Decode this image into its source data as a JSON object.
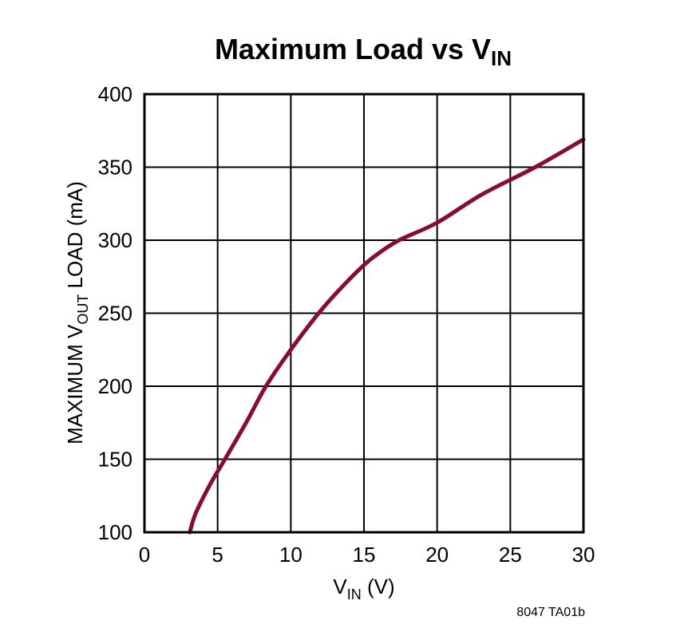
{
  "chart_data": {
    "type": "line",
    "title": "Maximum Load vs V",
    "title_subscript": "IN",
    "xlabel": "V",
    "xlabel_subscript": "IN",
    "xlabel_suffix": " (V)",
    "ylabel_prefix": "MAXIMUM V",
    "ylabel_subscript": "OUT",
    "ylabel_suffix": " LOAD (mA)",
    "xlim": [
      0,
      30
    ],
    "ylim": [
      100,
      400
    ],
    "xticks": [
      0,
      5,
      10,
      15,
      20,
      25,
      30
    ],
    "yticks": [
      100,
      150,
      200,
      250,
      300,
      350,
      400
    ],
    "grid": true,
    "legend": null,
    "series": [
      {
        "name": "Maximum VOUT Load",
        "color": "#8B0A2E",
        "x": [
          3.1,
          3.5,
          4.5,
          5.5,
          7.0,
          8.3,
          10.0,
          11.9,
          13.5,
          15.0,
          16.0,
          17.4,
          20.0,
          23.0,
          26.7,
          30.0
        ],
        "y": [
          100,
          113,
          133,
          150,
          176,
          200,
          225,
          250,
          268,
          283,
          291,
          300,
          312,
          331,
          350,
          369
        ]
      }
    ],
    "annotation": "8047 TA01b"
  }
}
